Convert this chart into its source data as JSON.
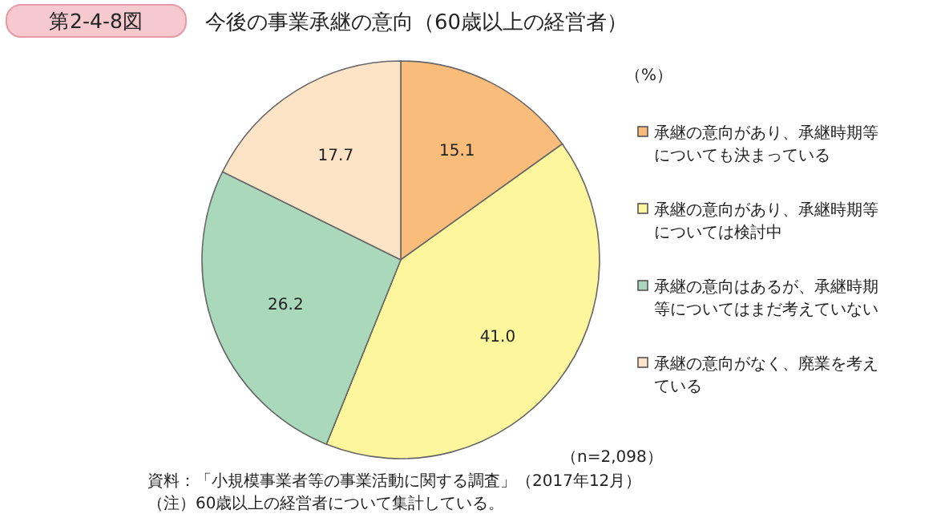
{
  "chart_data": {
    "type": "pie",
    "title": "今後の事業承継の意向（60歳以上の経営者）",
    "subtitle": "第2-4-8図",
    "categories": [
      "承継の意向があり、承継時期等についても決まっている",
      "承継の意向があり、承継時期等については検討中",
      "承継の意向はあるが、承継時期等についてはまだ考えていない",
      "承継の意向がなく、廃業を考えている"
    ],
    "values": [
      15.1,
      41.0,
      26.2,
      17.7
    ],
    "value_labels": [
      "15.1",
      "41.0",
      "26.2",
      "17.7"
    ],
    "colors": [
      "#f9bc7a",
      "#fdf69c",
      "#a9d9ba",
      "#fde4c6"
    ],
    "legend": "right",
    "annotations": [
      "（%）",
      "（n=2,098）",
      "資料：「小規模事業者等の事業活動に関する調査」（2017年12月）",
      "（注）60歳以上の経営者について集計している。"
    ]
  }
}
